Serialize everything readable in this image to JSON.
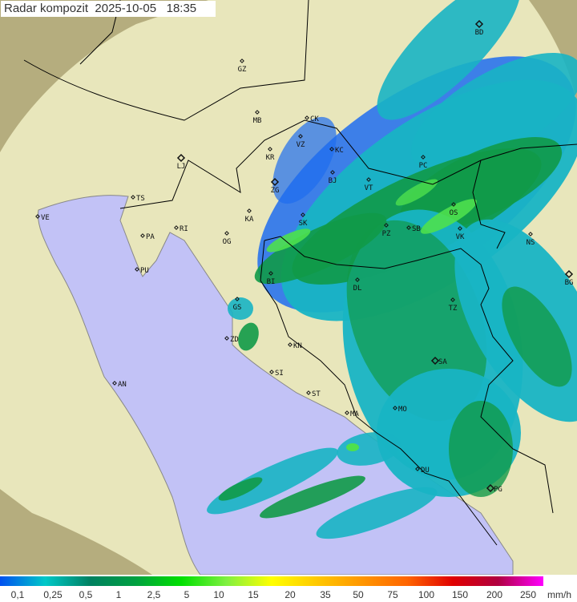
{
  "title": "Radar kompozit  2025-10-05   18:35",
  "colors": {
    "land": "#e8e6bb",
    "sea": "#c2c2f6",
    "outside_coverage": "#b5ad7e",
    "rain_light_blue": "#1e6cf0",
    "rain_cyan": "#18b4c4",
    "rain_green": "#119a48",
    "rain_bright_green": "#4ee04e",
    "border": "#000000"
  },
  "legend": {
    "unit": "mm/h",
    "labels": [
      "0,1",
      "0,25",
      "0,5",
      "1",
      "2,5",
      "5",
      "10",
      "15",
      "20",
      "35",
      "50",
      "75",
      "100",
      "150",
      "200",
      "250"
    ],
    "gradient": [
      "#0050f0",
      "#00c8c8",
      "#008060",
      "#00a040",
      "#00e000",
      "#80f040",
      "#ffff00",
      "#ffc800",
      "#ff9600",
      "#ff6400",
      "#e00000",
      "#b00040",
      "#ff00ff"
    ]
  },
  "cities": [
    "GZ",
    "MB",
    "CK",
    "VZ",
    "KR",
    "KC",
    "LJ",
    "ZG",
    "BJ",
    "VT",
    "PC",
    "OS",
    "VK",
    "SB",
    "PZ",
    "SK",
    "KA",
    "TS",
    "VE",
    "RI",
    "PA",
    "OG",
    "PU",
    "BI",
    "DL",
    "TZ",
    "GS",
    "ZD",
    "KN",
    "SI",
    "ST",
    "MA",
    "MO",
    "SA",
    "DU",
    "PG",
    "NS",
    "BG",
    "BD",
    "AN"
  ]
}
